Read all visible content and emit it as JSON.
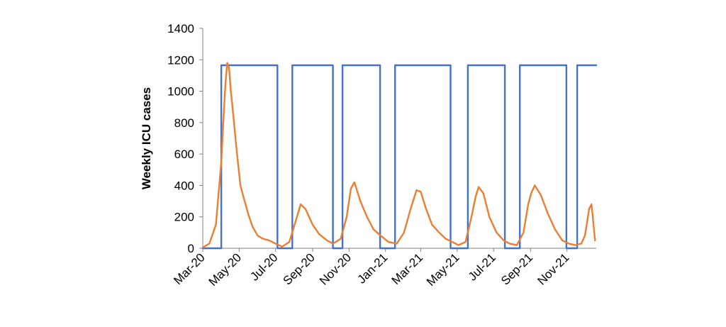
{
  "chart_data": {
    "type": "line",
    "ylabel": "Weekly ICU cases",
    "xlabel": "",
    "ylim": [
      0,
      1400
    ],
    "yticks": [
      0,
      200,
      400,
      600,
      800,
      1000,
      1200,
      1400
    ],
    "xlim": [
      "2020-03-01",
      "2021-12-20"
    ],
    "xticks": [
      "Mar-20",
      "May-20",
      "Jul-20",
      "Sep-20",
      "Nov-20",
      "Jan-21",
      "Mar-21",
      "May-21",
      "Jul-21",
      "Sep-21",
      "Nov-21"
    ],
    "xtick_dates": [
      "2020-03-01",
      "2020-05-01",
      "2020-07-01",
      "2020-09-01",
      "2020-11-01",
      "2021-01-01",
      "2021-03-01",
      "2021-05-01",
      "2021-07-01",
      "2021-09-01",
      "2021-11-01"
    ],
    "grid": false,
    "legend": "none",
    "colors": {
      "on_off_series": "#4472C4",
      "icu_series": "#ED7D31",
      "axis": "#808080"
    },
    "series": [
      {
        "color": "#4472C4",
        "style": "step",
        "x": [
          "2020-03-01",
          "2020-04-01",
          "2020-04-01",
          "2020-07-04",
          "2020-07-04",
          "2020-07-29",
          "2020-07-29",
          "2020-10-05",
          "2020-10-05",
          "2020-10-21",
          "2020-10-21",
          "2020-12-23",
          "2020-12-23",
          "2021-01-17",
          "2021-01-17",
          "2021-04-20",
          "2021-04-20",
          "2021-05-19",
          "2021-05-19",
          "2021-07-20",
          "2021-07-20",
          "2021-08-14",
          "2021-08-14",
          "2021-10-31",
          "2021-10-31",
          "2021-11-18",
          "2021-11-18",
          "2021-12-20"
        ],
        "y": [
          0,
          0,
          1165,
          1165,
          0,
          0,
          1165,
          1165,
          0,
          0,
          1165,
          1165,
          0,
          0,
          1165,
          1165,
          0,
          0,
          1165,
          1165,
          0,
          0,
          1165,
          1165,
          0,
          0,
          1165,
          1165
        ]
      },
      {
        "color": "#ED7D31",
        "style": "line",
        "x": [
          "2020-03-01",
          "2020-03-12",
          "2020-03-23",
          "2020-04-01",
          "2020-04-05",
          "2020-04-08",
          "2020-04-11",
          "2020-04-14",
          "2020-04-17",
          "2020-04-21",
          "2020-04-26",
          "2020-05-03",
          "2020-05-10",
          "2020-05-16",
          "2020-05-23",
          "2020-06-01",
          "2020-06-10",
          "2020-06-20",
          "2020-07-01",
          "2020-07-12",
          "2020-07-24",
          "2020-08-05",
          "2020-08-12",
          "2020-08-20",
          "2020-09-01",
          "2020-09-12",
          "2020-09-25",
          "2020-10-05",
          "2020-10-18",
          "2020-10-28",
          "2020-11-04",
          "2020-11-10",
          "2020-11-20",
          "2020-12-01",
          "2020-12-12",
          "2020-12-24",
          "2021-01-06",
          "2021-01-20",
          "2021-02-01",
          "2021-02-12",
          "2021-02-22",
          "2021-03-01",
          "2021-03-10",
          "2021-03-20",
          "2021-04-01",
          "2021-04-12",
          "2021-04-23",
          "2021-05-03",
          "2021-05-15",
          "2021-05-25",
          "2021-06-01",
          "2021-06-06",
          "2021-06-14",
          "2021-06-24",
          "2021-07-06",
          "2021-07-18",
          "2021-07-28",
          "2021-08-09",
          "2021-08-20",
          "2021-08-28",
          "2021-09-02",
          "2021-09-08",
          "2021-09-18",
          "2021-09-30",
          "2021-10-12",
          "2021-10-24",
          "2021-11-04",
          "2021-11-15",
          "2021-11-25",
          "2021-12-01",
          "2021-12-04",
          "2021-12-08",
          "2021-12-12",
          "2021-12-18"
        ],
        "y": [
          5,
          30,
          150,
          550,
          850,
          1050,
          1180,
          1150,
          1000,
          850,
          650,
          400,
          300,
          220,
          140,
          80,
          60,
          50,
          30,
          10,
          40,
          190,
          280,
          250,
          150,
          90,
          50,
          30,
          60,
          200,
          380,
          420,
          300,
          200,
          120,
          80,
          40,
          30,
          100,
          250,
          370,
          360,
          250,
          150,
          100,
          60,
          40,
          20,
          40,
          200,
          330,
          390,
          350,
          200,
          100,
          50,
          30,
          20,
          100,
          280,
          350,
          400,
          340,
          220,
          120,
          50,
          30,
          20,
          30,
          80,
          150,
          250,
          280,
          50
        ]
      }
    ]
  }
}
